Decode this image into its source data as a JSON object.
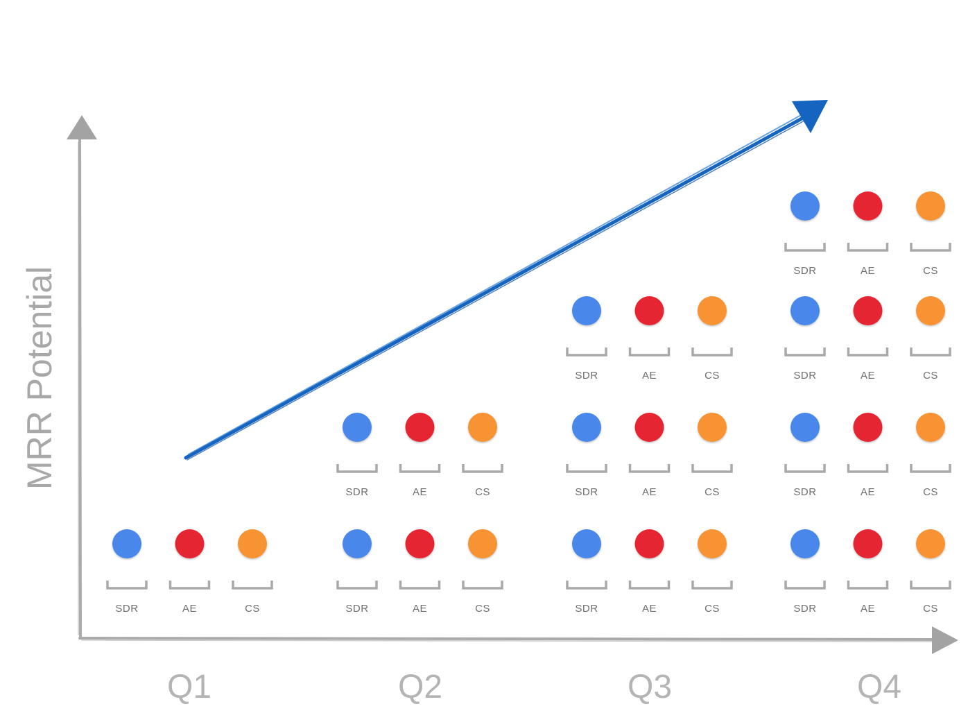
{
  "y_axis_label": "MRR Potential",
  "quarters": [
    {
      "label": "Q1",
      "teams": 1
    },
    {
      "label": "Q2",
      "teams": 2
    },
    {
      "label": "Q3",
      "teams": 3
    },
    {
      "label": "Q4",
      "teams": 4
    }
  ],
  "roles": [
    {
      "label": "SDR",
      "color": "#4a87ea"
    },
    {
      "label": "AE",
      "color": "#e52632"
    },
    {
      "label": "CS",
      "color": "#f79331"
    }
  ],
  "colors": {
    "axis": "#ababab",
    "growth_arrow": "#1565c0"
  },
  "icons": {
    "y_axis_arrow": "arrow-up-icon",
    "x_axis_arrow": "arrow-right-icon",
    "growth_arrow": "arrow-up-right-icon"
  }
}
